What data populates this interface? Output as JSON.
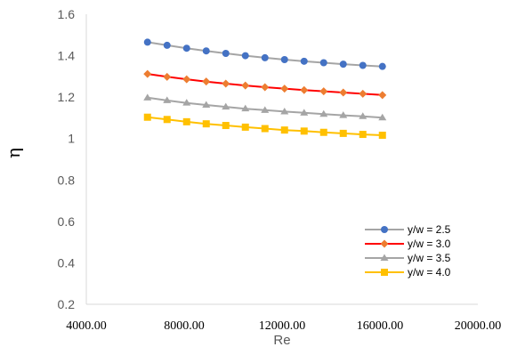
{
  "chart_data": {
    "type": "line",
    "xlabel": "Re",
    "ylabel": "η",
    "xlim": [
      4000,
      20000
    ],
    "ylim": [
      0.2,
      1.6
    ],
    "xticks": [
      4000,
      8000,
      12000,
      16000,
      20000
    ],
    "xtick_labels": [
      "4000.00",
      "8000.00",
      "12000.00",
      "16000.00",
      "20000.00"
    ],
    "yticks": [
      0.2,
      0.4,
      0.6,
      0.8,
      1.0,
      1.2,
      1.4,
      1.6
    ],
    "ytick_labels": [
      "0.2",
      "0.4",
      "0.6",
      "0.8",
      "1",
      "1.2",
      "1.4",
      "1.6"
    ],
    "grid": false,
    "legend_position": "right",
    "x": [
      6500,
      7300,
      8100,
      8900,
      9700,
      10500,
      11300,
      12100,
      12900,
      13700,
      14500,
      15300,
      16100
    ],
    "series": [
      {
        "name": "y/w = 2.5",
        "marker": "circle",
        "color": "#4472C4",
        "line_color": "#A5A5A5",
        "values": [
          1.465,
          1.45,
          1.436,
          1.423,
          1.411,
          1.4,
          1.39,
          1.381,
          1.373,
          1.366,
          1.359,
          1.353,
          1.348
        ]
      },
      {
        "name": "y/w = 3.0",
        "marker": "diamond",
        "color": "#ED7D31",
        "line_color": "#FF0000",
        "values": [
          1.312,
          1.298,
          1.286,
          1.275,
          1.265,
          1.256,
          1.248,
          1.241,
          1.234,
          1.228,
          1.222,
          1.216,
          1.21
        ]
      },
      {
        "name": "y/w = 3.5",
        "marker": "triangle",
        "color": "#A5A5A5",
        "line_color": "#A5A5A5",
        "values": [
          1.197,
          1.184,
          1.172,
          1.162,
          1.153,
          1.144,
          1.137,
          1.13,
          1.124,
          1.118,
          1.112,
          1.107,
          1.101
        ]
      },
      {
        "name": "y/w = 4.0",
        "marker": "square",
        "color": "#FFC000",
        "line_color": "#FFC000",
        "values": [
          1.103,
          1.092,
          1.081,
          1.071,
          1.063,
          1.055,
          1.048,
          1.041,
          1.036,
          1.03,
          1.025,
          1.02,
          1.016
        ]
      }
    ]
  }
}
